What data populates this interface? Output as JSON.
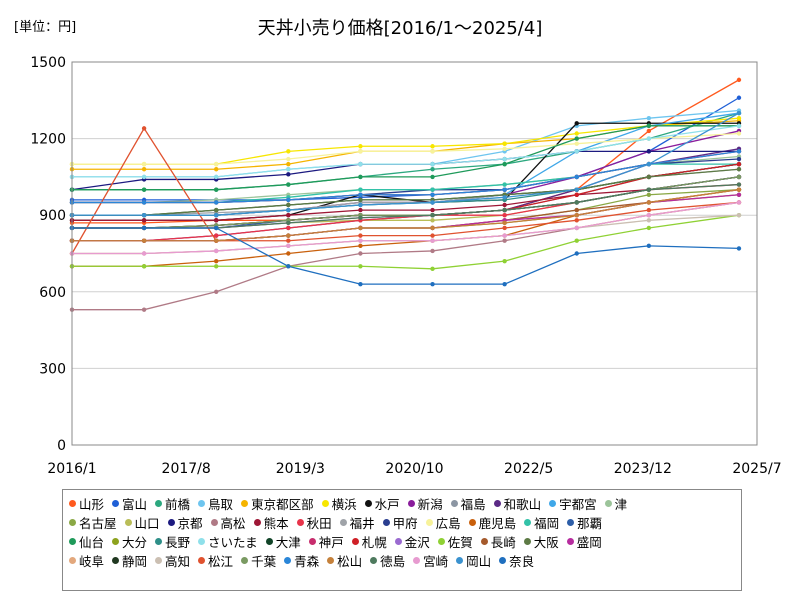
{
  "header": {
    "unit": "[単位：円]",
    "title": "天丼小売り価格[2016/1～2025/4]"
  },
  "chart_data": {
    "type": "line",
    "title": "天丼小売り価格[2016/1～2025/4]",
    "unit": "[単位：円]",
    "ylim": [
      0,
      1500
    ],
    "yticks": [
      0,
      300,
      600,
      900,
      1200,
      1500
    ],
    "xlim": [
      "2016/1",
      "2025/7"
    ],
    "xticks": [
      "2016/1",
      "2017/8",
      "2019/3",
      "2020/10",
      "2022/5",
      "2023/12",
      "2025/7"
    ],
    "grid": "horizontal",
    "legend": "bottom",
    "x_dates": [
      "2016/1",
      "2017/1",
      "2018/1",
      "2019/1",
      "2020/1",
      "2021/1",
      "2022/1",
      "2023/1",
      "2024/1",
      "2025/4"
    ],
    "series": [
      {
        "name": "山形",
        "color": "#ff5a1e",
        "values": [
          870,
          870,
          880,
          880,
          900,
          900,
          920,
          1000,
          1230,
          1430
        ]
      },
      {
        "name": "富山",
        "color": "#1f5fd6",
        "values": [
          960,
          960,
          960,
          960,
          970,
          980,
          1000,
          1050,
          1150,
          1360
        ]
      },
      {
        "name": "前橋",
        "color": "#2ca87f",
        "values": [
          1000,
          1000,
          1000,
          1020,
          1050,
          1080,
          1100,
          1150,
          1200,
          1300
        ]
      },
      {
        "name": "鳥取",
        "color": "#6ec5ef",
        "values": [
          1050,
          1050,
          1050,
          1080,
          1100,
          1100,
          1150,
          1250,
          1280,
          1310
        ]
      },
      {
        "name": "東京都区部",
        "color": "#f5b400",
        "values": [
          1080,
          1080,
          1080,
          1100,
          1150,
          1150,
          1180,
          1200,
          1250,
          1270
        ]
      },
      {
        "name": "横浜",
        "color": "#f7e600",
        "values": [
          1100,
          1100,
          1100,
          1150,
          1170,
          1170,
          1180,
          1220,
          1250,
          1280
        ]
      },
      {
        "name": "水戸",
        "color": "#111111",
        "values": [
          880,
          880,
          880,
          900,
          980,
          950,
          960,
          1260,
          1260,
          1260
        ]
      },
      {
        "name": "新潟",
        "color": "#8a1d9c",
        "values": [
          900,
          900,
          900,
          920,
          950,
          950,
          980,
          1050,
          1150,
          1230
        ]
      },
      {
        "name": "福島",
        "color": "#8c96a3",
        "values": [
          850,
          850,
          860,
          880,
          900,
          900,
          920,
          980,
          1050,
          1100
        ]
      },
      {
        "name": "和歌山",
        "color": "#5b2a86",
        "values": [
          800,
          800,
          820,
          850,
          880,
          900,
          920,
          1000,
          1100,
          1160
        ]
      },
      {
        "name": "宇都宮",
        "color": "#3fa7e8",
        "values": [
          900,
          900,
          900,
          920,
          940,
          950,
          980,
          1150,
          1250,
          1300
        ]
      },
      {
        "name": "津",
        "color": "#9cc49a",
        "values": [
          950,
          950,
          960,
          980,
          1000,
          1000,
          1020,
          1050,
          1100,
          1130
        ]
      },
      {
        "name": "名古屋",
        "color": "#8aa845",
        "values": [
          800,
          800,
          800,
          820,
          850,
          850,
          880,
          920,
          980,
          1000
        ]
      },
      {
        "name": "山口",
        "color": "#b9bd58",
        "values": [
          850,
          850,
          850,
          870,
          880,
          880,
          900,
          950,
          1000,
          1050
        ]
      },
      {
        "name": "京都",
        "color": "#1c1a80",
        "values": [
          1000,
          1040,
          1040,
          1060,
          1100,
          1100,
          1120,
          1150,
          1150,
          1150
        ]
      },
      {
        "name": "高松",
        "color": "#b07a86",
        "values": [
          530,
          530,
          600,
          700,
          750,
          760,
          800,
          850,
          900,
          950
        ]
      },
      {
        "name": "熊本",
        "color": "#9e1736",
        "values": [
          880,
          880,
          880,
          900,
          920,
          920,
          940,
          980,
          1000,
          1050
        ]
      },
      {
        "name": "秋田",
        "color": "#e8344a",
        "values": [
          800,
          800,
          820,
          850,
          880,
          900,
          900,
          950,
          1000,
          1020
        ]
      },
      {
        "name": "福井",
        "color": "#9fa3a8",
        "values": [
          900,
          900,
          910,
          920,
          950,
          950,
          980,
          1000,
          1050,
          1080
        ]
      },
      {
        "name": "甲府",
        "color": "#2a3e8f",
        "values": [
          950,
          950,
          950,
          960,
          980,
          1000,
          1000,
          1050,
          1100,
          1120
        ]
      },
      {
        "name": "広島",
        "color": "#f7f29a",
        "values": [
          1100,
          1100,
          1100,
          1120,
          1150,
          1150,
          1160,
          1180,
          1200,
          1220
        ]
      },
      {
        "name": "鹿児島",
        "color": "#c9600c",
        "values": [
          700,
          700,
          720,
          750,
          780,
          800,
          820,
          900,
          950,
          1000
        ]
      },
      {
        "name": "福岡",
        "color": "#33c2a8",
        "values": [
          950,
          950,
          950,
          970,
          1000,
          1000,
          1020,
          1050,
          1100,
          1100
        ]
      },
      {
        "name": "那覇",
        "color": "#2d5ea8",
        "values": [
          850,
          850,
          850,
          880,
          900,
          900,
          920,
          950,
          1000,
          1050
        ]
      },
      {
        "name": "仙台",
        "color": "#1f9a5a",
        "values": [
          1000,
          1000,
          1000,
          1020,
          1050,
          1050,
          1100,
          1200,
          1250,
          1250
        ]
      },
      {
        "name": "大分",
        "color": "#8da21e",
        "values": [
          800,
          800,
          800,
          820,
          850,
          850,
          870,
          900,
          950,
          980
        ]
      },
      {
        "name": "長野",
        "color": "#2e8f88",
        "values": [
          900,
          900,
          900,
          920,
          940,
          950,
          960,
          1000,
          1050,
          1100
        ]
      },
      {
        "name": "さいたま",
        "color": "#8fe0ea",
        "values": [
          1050,
          1050,
          1050,
          1080,
          1100,
          1100,
          1120,
          1150,
          1200,
          1250
        ]
      },
      {
        "name": "大津",
        "color": "#114428",
        "values": [
          900,
          900,
          920,
          940,
          960,
          960,
          980,
          1000,
          1050,
          1100
        ]
      },
      {
        "name": "神戸",
        "color": "#c72d6d",
        "values": [
          950,
          950,
          950,
          960,
          980,
          980,
          1000,
          1050,
          1100,
          1150
        ]
      },
      {
        "name": "札幌",
        "color": "#cf1f26",
        "values": [
          850,
          850,
          860,
          880,
          900,
          900,
          920,
          980,
          1050,
          1100
        ]
      },
      {
        "name": "金沢",
        "color": "#9a6ad0",
        "values": [
          850,
          850,
          850,
          870,
          890,
          900,
          920,
          950,
          1000,
          1050
        ]
      },
      {
        "name": "佐賀",
        "color": "#8fd134",
        "values": [
          700,
          700,
          700,
          700,
          700,
          690,
          720,
          800,
          850,
          900
        ]
      },
      {
        "name": "長崎",
        "color": "#a55a2c",
        "values": [
          800,
          800,
          800,
          820,
          850,
          850,
          880,
          920,
          950,
          1000
        ]
      },
      {
        "name": "大阪",
        "color": "#5d7a45",
        "values": [
          900,
          900,
          920,
          940,
          960,
          960,
          980,
          1000,
          1050,
          1080
        ]
      },
      {
        "name": "盛岡",
        "color": "#b72c9f",
        "values": [
          800,
          800,
          800,
          820,
          850,
          850,
          880,
          900,
          950,
          980
        ]
      },
      {
        "name": "岐阜",
        "color": "#e3a87d",
        "values": [
          750,
          750,
          760,
          780,
          800,
          800,
          820,
          850,
          900,
          950
        ]
      },
      {
        "name": "静岡",
        "color": "#203820",
        "values": [
          850,
          850,
          860,
          880,
          900,
          900,
          920,
          950,
          1000,
          1050
        ]
      },
      {
        "name": "高知",
        "color": "#cbbfb2",
        "values": [
          750,
          750,
          760,
          780,
          800,
          800,
          820,
          850,
          880,
          900
        ]
      },
      {
        "name": "松江",
        "color": "#e0522f",
        "values": [
          750,
          1240,
          800,
          800,
          820,
          820,
          850,
          880,
          920,
          950
        ]
      },
      {
        "name": "千葉",
        "color": "#7a9a62",
        "values": [
          850,
          850,
          860,
          880,
          900,
          900,
          920,
          950,
          1000,
          1050
        ]
      },
      {
        "name": "青森",
        "color": "#2a86d8",
        "values": [
          950,
          950,
          950,
          960,
          980,
          980,
          1000,
          1050,
          1100,
          1150
        ]
      },
      {
        "name": "松山",
        "color": "#c5813b",
        "values": [
          800,
          800,
          800,
          820,
          850,
          850,
          870,
          900,
          950,
          1000
        ]
      },
      {
        "name": "徳島",
        "color": "#4e7a5e",
        "values": [
          850,
          850,
          850,
          870,
          890,
          900,
          920,
          950,
          1000,
          1020
        ]
      },
      {
        "name": "宮崎",
        "color": "#e79bd0",
        "values": [
          750,
          750,
          760,
          780,
          800,
          800,
          820,
          850,
          900,
          950
        ]
      },
      {
        "name": "岡山",
        "color": "#3a92cf",
        "values": [
          900,
          900,
          900,
          920,
          940,
          950,
          970,
          1000,
          1100,
          1300
        ]
      },
      {
        "name": "奈良",
        "color": "#1f6fbf",
        "values": [
          850,
          850,
          850,
          700,
          630,
          630,
          630,
          750,
          780,
          770
        ]
      }
    ]
  }
}
